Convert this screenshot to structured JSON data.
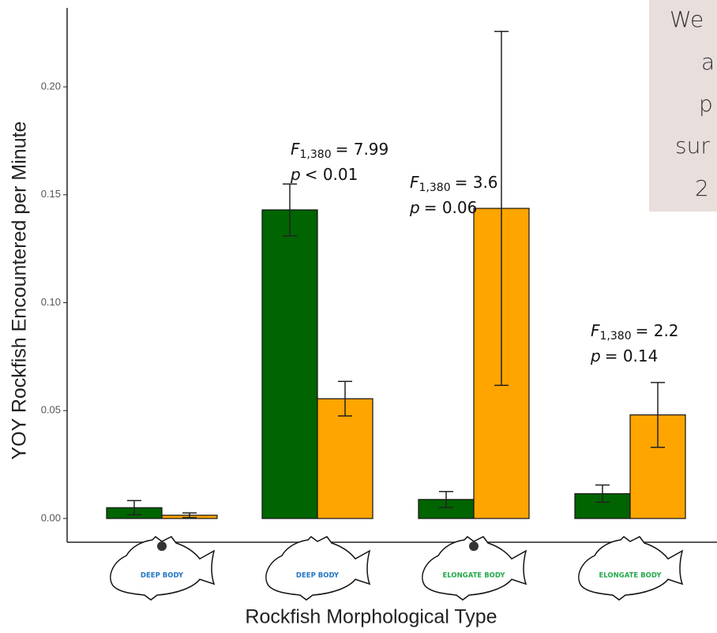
{
  "chart_data": {
    "type": "bar",
    "y_label": "YOY Rockfish Encountered per Minute",
    "x_label": "Rockfish Morphological Type",
    "categories": [
      "DEEP BODY",
      "DEEP BODY",
      "ELONGATE BODY",
      "ELONGATE BODY"
    ],
    "category_colors": [
      "#1f74c4",
      "#1f74c4",
      "#22a84a",
      "#22a84a"
    ],
    "series": [
      {
        "color": "#006400",
        "values": [
          0.005,
          0.143,
          0.0088,
          0.0115
        ],
        "errors": [
          0.0033,
          0.012,
          0.0037,
          0.004
        ]
      },
      {
        "color": "#ffa500",
        "values": [
          0.0015,
          0.0555,
          0.1437,
          0.048
        ],
        "errors": [
          0.0011,
          0.008,
          0.082,
          0.015
        ]
      }
    ],
    "ylim": [
      -0.011,
      0.2366
    ],
    "yticks": [
      {
        "value": 0,
        "label": "0.00"
      },
      0.05,
      {
        "value": 0.1,
        "label": "0.10"
      },
      0.15,
      {
        "value": 0.2,
        "label": "0.20"
      }
    ],
    "grid": false,
    "annotations": [
      {
        "lines": [
          {
            "italic": "F",
            "sub": "1,380",
            "rest": "= 7.99"
          },
          {
            "italic": "p",
            "rest": "< 0.01"
          }
        ]
      },
      {
        "lines": [
          {
            "italic": "F",
            "sub": "1,380",
            "rest": "= 3.6"
          },
          {
            "italic": "p",
            "rest": "= 0.06"
          }
        ]
      },
      {
        "lines": [
          {
            "italic": "F",
            "sub": "1,380",
            "rest": "= 2.2"
          },
          {
            "italic": "p",
            "rest": "= 0.14"
          }
        ]
      }
    ]
  },
  "side_note": {
    "lines": [
      "We",
      "a",
      "p",
      "sur",
      "2"
    ]
  }
}
